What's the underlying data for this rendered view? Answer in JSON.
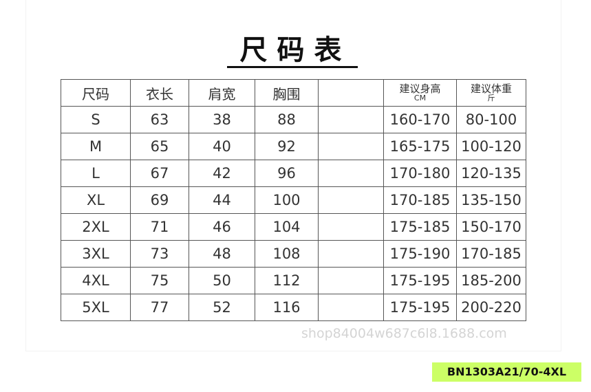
{
  "title": "尺码表",
  "table": {
    "columns": [
      {
        "label": "尺码"
      },
      {
        "label": "衣长"
      },
      {
        "label": "肩宽"
      },
      {
        "label": "胸围"
      },
      {
        "label": "建议身高",
        "sub": "CM"
      },
      {
        "label": "建议体重",
        "sub": "斤"
      }
    ],
    "rows": [
      [
        "S",
        63,
        38,
        88,
        "160-170",
        "80-100"
      ],
      [
        "M",
        65,
        40,
        92,
        "165-175",
        "100-120"
      ],
      [
        "L",
        67,
        42,
        96,
        "170-180",
        "120-135"
      ],
      [
        "XL",
        69,
        44,
        100,
        "170-185",
        "135-150"
      ],
      [
        "2XL",
        71,
        46,
        104,
        "175-185",
        "150-170"
      ],
      [
        "3XL",
        73,
        48,
        108,
        "175-190",
        "170-185"
      ],
      [
        "4XL",
        75,
        50,
        112,
        "175-195",
        "185-200"
      ],
      [
        "5XL",
        77,
        52,
        116,
        "175-195",
        "200-220"
      ]
    ]
  },
  "watermark": "shop84004w687c6l8.1688.com",
  "product_code": "BN1303A21/70-4XL"
}
